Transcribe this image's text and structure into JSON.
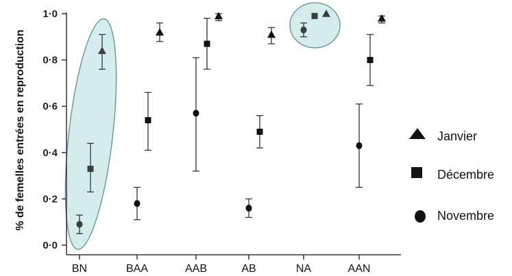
{
  "chart_data": {
    "type": "scatter",
    "ylabel": "% de femelles entrées en reproduction",
    "xlabel": "",
    "ylim": [
      0.0,
      1.0
    ],
    "yticks": [
      "0·0",
      "0·2",
      "0·4",
      "0·6",
      "0·8",
      "1·0"
    ],
    "categories": [
      "BN",
      "BAA",
      "AAB",
      "AB",
      "NA",
      "AAN"
    ],
    "legend_position": "right",
    "series": [
      {
        "name": "Novembre",
        "marker": "circle",
        "values": [
          0.09,
          0.18,
          0.57,
          0.16,
          0.93,
          0.43
        ],
        "err_low": [
          0.05,
          0.11,
          0.32,
          0.12,
          0.9,
          0.25
        ],
        "err_high": [
          0.13,
          0.25,
          0.81,
          0.2,
          0.96,
          0.61
        ]
      },
      {
        "name": "Décembre",
        "marker": "square",
        "values": [
          0.33,
          0.54,
          0.87,
          0.49,
          0.99,
          0.8
        ],
        "err_low": [
          0.23,
          0.41,
          0.76,
          0.42,
          0.99,
          0.69
        ],
        "err_high": [
          0.44,
          0.66,
          0.98,
          0.56,
          0.99,
          0.91
        ]
      },
      {
        "name": "Janvier",
        "marker": "triangle",
        "values": [
          0.84,
          0.92,
          0.99,
          0.91,
          1.0,
          0.98
        ],
        "err_low": [
          0.76,
          0.88,
          0.97,
          0.87,
          1.0,
          0.96
        ],
        "err_high": [
          0.91,
          0.96,
          1.0,
          0.94,
          1.0,
          0.99
        ]
      }
    ],
    "highlights": [
      {
        "category": "BN",
        "series": [
          "Novembre",
          "Décembre",
          "Janvier"
        ]
      },
      {
        "category": "NA",
        "series": [
          "Novembre",
          "Décembre",
          "Janvier"
        ]
      }
    ],
    "colors": {
      "marker": "#111111",
      "highlighted_marker": "#3a3f3f",
      "highlight_fill": "#d4ecec",
      "highlight_stroke": "#6c9c9c",
      "axis": "#333333"
    }
  }
}
